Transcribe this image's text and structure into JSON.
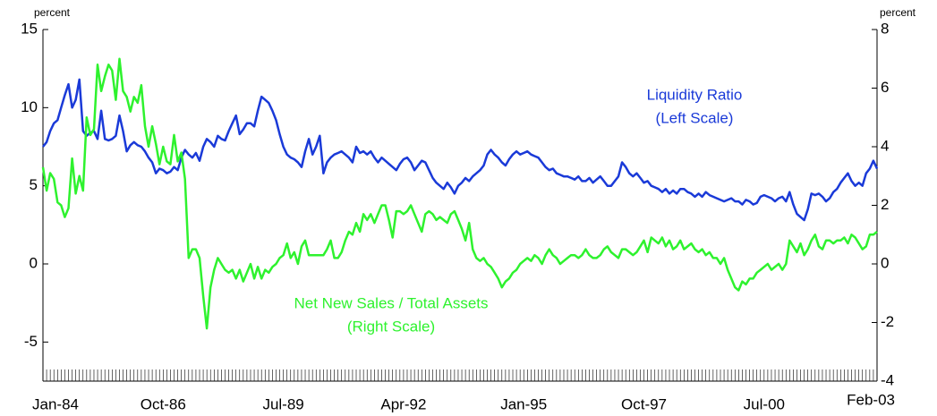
{
  "chart_data": {
    "type": "line",
    "categories": [
      "Jan-84",
      null,
      null,
      null,
      null,
      null,
      null,
      null,
      null,
      null,
      null,
      null,
      null,
      null,
      null,
      null,
      null,
      null,
      null,
      null,
      null,
      null,
      null,
      null,
      null,
      null,
      null,
      null,
      null,
      null,
      null,
      null,
      null,
      "Oct-86",
      null,
      null,
      null,
      null,
      null,
      null,
      null,
      null,
      null,
      null,
      null,
      null,
      null,
      null,
      null,
      null,
      null,
      null,
      null,
      null,
      null,
      null,
      null,
      null,
      null,
      null,
      null,
      null,
      null,
      null,
      null,
      null,
      "Jul-89",
      null,
      null,
      null,
      null,
      null,
      null,
      null,
      null,
      null,
      null,
      null,
      null,
      null,
      null,
      null,
      null,
      null,
      null,
      null,
      null,
      null,
      null,
      null,
      null,
      null,
      null,
      null,
      null,
      null,
      null,
      null,
      null,
      "Apr-92",
      null,
      null,
      null,
      null,
      null,
      null,
      null,
      null,
      null,
      null,
      null,
      null,
      null,
      null,
      null,
      null,
      null,
      null,
      null,
      null,
      null,
      null,
      null,
      null,
      null,
      null,
      null,
      null,
      null,
      null,
      null,
      null,
      "Jan-95",
      null,
      null,
      null,
      null,
      null,
      null,
      null,
      null,
      null,
      null,
      null,
      null,
      null,
      null,
      null,
      null,
      null,
      null,
      null,
      null,
      null,
      null,
      null,
      null,
      null,
      null,
      null,
      null,
      null,
      null,
      null,
      null,
      "Oct-97",
      null,
      null,
      null,
      null,
      null,
      null,
      null,
      null,
      null,
      null,
      null,
      null,
      null,
      null,
      null,
      null,
      null,
      null,
      null,
      null,
      null,
      null,
      null,
      null,
      null,
      null,
      null,
      null,
      null,
      null,
      null,
      null,
      "Jul-00",
      null,
      null,
      null,
      null,
      null,
      null,
      null,
      null,
      null,
      null,
      null,
      null,
      null,
      null,
      null,
      null,
      null,
      null,
      null,
      null,
      null,
      null,
      null,
      null,
      null,
      null,
      null,
      null,
      null,
      null,
      "Feb-03"
    ],
    "series": [
      {
        "name": "Liquidity Ratio",
        "scale_label": "(Left Scale)",
        "color": "#1a3ad8",
        "axis": "y",
        "values": [
          7.5,
          7.8,
          8.5,
          9.0,
          9.2,
          10.0,
          10.8,
          11.5,
          10.0,
          10.5,
          11.8,
          8.5,
          8.2,
          8.4,
          8.5,
          8.0,
          9.8,
          8.0,
          7.9,
          8.0,
          8.2,
          9.5,
          8.5,
          7.2,
          7.6,
          7.8,
          7.6,
          7.5,
          7.2,
          6.8,
          6.5,
          5.8,
          6.1,
          6.0,
          5.8,
          5.9,
          6.2,
          6.0,
          6.8,
          7.3,
          7.0,
          6.8,
          7.1,
          6.6,
          7.5,
          8.0,
          7.8,
          7.5,
          8.2,
          8.0,
          7.9,
          8.5,
          9.0,
          9.5,
          8.3,
          8.6,
          9.0,
          9.0,
          8.8,
          9.8,
          10.7,
          10.5,
          10.3,
          9.8,
          9.2,
          8.3,
          7.5,
          7.0,
          6.8,
          6.7,
          6.5,
          6.2,
          7.2,
          8.0,
          7.0,
          7.5,
          8.2,
          5.8,
          6.5,
          6.8,
          7.0,
          7.1,
          7.2,
          7.0,
          6.8,
          6.5,
          7.5,
          7.1,
          7.2,
          7.0,
          7.2,
          6.8,
          6.5,
          6.8,
          6.6,
          6.4,
          6.2,
          6.0,
          6.4,
          6.7,
          6.8,
          6.5,
          6.0,
          6.3,
          6.6,
          6.5,
          6.0,
          5.5,
          5.2,
          5.0,
          4.8,
          5.2,
          4.9,
          4.5,
          5.0,
          5.2,
          5.5,
          5.3,
          5.6,
          5.8,
          6.0,
          6.3,
          7.0,
          7.3,
          7.0,
          6.8,
          6.5,
          6.3,
          6.7,
          7.0,
          7.2,
          7.0,
          7.1,
          7.2,
          7.0,
          6.9,
          6.8,
          6.5,
          6.2,
          6.0,
          6.1,
          5.8,
          5.7,
          5.6,
          5.6,
          5.5,
          5.4,
          5.6,
          5.3,
          5.3,
          5.5,
          5.2,
          5.4,
          5.6,
          5.3,
          5.0,
          5.0,
          5.3,
          5.6,
          6.5,
          6.2,
          5.8,
          5.6,
          5.8,
          5.5,
          5.2,
          5.3,
          5.0,
          4.9,
          4.8,
          4.6,
          4.8,
          4.5,
          4.7,
          4.5,
          4.8,
          4.8,
          4.6,
          4.5,
          4.3,
          4.5,
          4.3,
          4.6,
          4.4,
          4.3,
          4.2,
          4.1,
          4.0,
          4.1,
          4.2,
          4.0,
          4.0,
          3.8,
          4.1,
          4.0,
          3.8,
          3.9,
          4.3,
          4.4,
          4.3,
          4.2,
          4.0,
          4.2,
          4.3,
          4.0,
          4.6,
          3.8,
          3.2,
          3.0,
          2.8,
          3.5,
          4.5,
          4.4,
          4.5,
          4.3,
          4.0,
          4.2,
          4.6,
          4.8,
          5.2,
          5.5,
          5.8,
          5.3,
          5.0,
          5.2,
          5.0,
          5.8,
          6.1,
          6.6,
          6.1
        ]
      },
      {
        "name": "Net New Sales / Total Assets",
        "scale_label": "(Right Scale)",
        "color": "#2ef22e",
        "axis": "y2",
        "values": [
          3.3,
          2.5,
          3.1,
          2.9,
          2.1,
          2.0,
          1.6,
          1.9,
          3.6,
          2.4,
          3.0,
          2.5,
          5.0,
          4.4,
          4.6,
          6.8,
          5.9,
          6.4,
          6.8,
          6.6,
          5.6,
          7.0,
          5.9,
          5.7,
          5.2,
          5.7,
          5.5,
          6.1,
          4.7,
          4.0,
          4.7,
          4.1,
          3.4,
          4.0,
          3.5,
          3.4,
          4.4,
          3.5,
          3.8,
          2.9,
          0.2,
          0.5,
          0.5,
          0.2,
          -1.1,
          -2.2,
          -0.8,
          -0.2,
          0.2,
          0.0,
          -0.2,
          -0.3,
          -0.2,
          -0.5,
          -0.2,
          -0.6,
          -0.3,
          0.0,
          -0.5,
          -0.1,
          -0.5,
          -0.2,
          -0.3,
          -0.1,
          0.0,
          0.2,
          0.3,
          0.7,
          0.2,
          0.4,
          0.0,
          0.6,
          0.8,
          0.3,
          0.3,
          0.3,
          0.3,
          0.3,
          0.5,
          0.8,
          0.2,
          0.2,
          0.4,
          0.8,
          1.1,
          1.0,
          1.4,
          1.1,
          1.7,
          1.5,
          1.7,
          1.4,
          1.7,
          2.0,
          2.0,
          1.5,
          0.9,
          1.8,
          1.8,
          1.7,
          1.8,
          2.0,
          1.7,
          1.4,
          1.1,
          1.7,
          1.8,
          1.7,
          1.5,
          1.6,
          1.5,
          1.4,
          1.7,
          1.8,
          1.5,
          1.2,
          0.8,
          1.4,
          0.5,
          0.2,
          0.1,
          0.2,
          0.0,
          -0.1,
          -0.3,
          -0.5,
          -0.8,
          -0.6,
          -0.5,
          -0.3,
          -0.2,
          0.0,
          0.1,
          0.2,
          0.1,
          0.3,
          0.2,
          0.0,
          0.3,
          0.5,
          0.3,
          0.2,
          0.0,
          0.1,
          0.2,
          0.3,
          0.3,
          0.2,
          0.3,
          0.5,
          0.3,
          0.2,
          0.2,
          0.3,
          0.5,
          0.6,
          0.4,
          0.3,
          0.2,
          0.5,
          0.5,
          0.4,
          0.3,
          0.4,
          0.6,
          0.8,
          0.4,
          0.9,
          0.8,
          0.7,
          0.9,
          0.6,
          0.8,
          0.5,
          0.6,
          0.8,
          0.5,
          0.6,
          0.7,
          0.5,
          0.4,
          0.5,
          0.3,
          0.4,
          0.2,
          0.2,
          0.0,
          0.2,
          -0.2,
          -0.5,
          -0.8,
          -0.9,
          -0.6,
          -0.7,
          -0.5,
          -0.5,
          -0.3,
          -0.2,
          -0.1,
          0.0,
          -0.2,
          -0.1,
          0.0,
          -0.2,
          0.0,
          0.8,
          0.6,
          0.4,
          0.7,
          0.3,
          0.5,
          0.8,
          1.0,
          0.6,
          0.5,
          0.8,
          0.8,
          0.7,
          0.8,
          0.8,
          0.9,
          0.7,
          1.0,
          0.9,
          0.7,
          0.5,
          0.6,
          1.0,
          1.0,
          1.1
        ]
      }
    ],
    "y_unit": "percent",
    "y2_unit": "percent",
    "ylim": [
      -7.5,
      15
    ],
    "yticks": [
      -5,
      0,
      5,
      10,
      15
    ],
    "y2lim": [
      -4,
      8
    ],
    "y2ticks": [
      -4,
      -2,
      0,
      2,
      4,
      6,
      8
    ]
  }
}
